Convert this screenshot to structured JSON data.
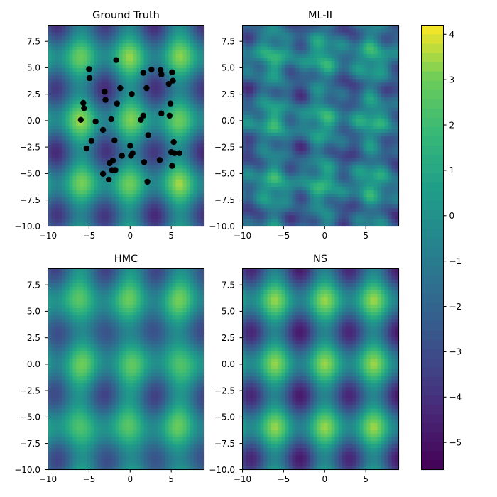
{
  "chart_data": [
    {
      "type": "heatmap",
      "title": "Ground Truth",
      "xlim": [
        -10,
        9
      ],
      "ylim": [
        -10,
        9
      ],
      "xticks": [
        "−10",
        "−5",
        "0",
        "5"
      ],
      "yticks": [
        "7.5",
        "5.0",
        "2.5",
        "0.0",
        "−2.5",
        "−5.0",
        "−7.5",
        "−10.0"
      ],
      "field": "ground_truth",
      "scatter": {
        "color": "#000000",
        "points": [
          [
            -5.0,
            4.85
          ],
          [
            -4.95,
            4.0
          ],
          [
            -1.7,
            5.7
          ],
          [
            2.6,
            4.8
          ],
          [
            3.7,
            4.75
          ],
          [
            5.1,
            4.55
          ],
          [
            1.6,
            4.5
          ],
          [
            3.8,
            4.35
          ],
          [
            5.2,
            3.75
          ],
          [
            4.7,
            3.45
          ],
          [
            -1.2,
            3.05
          ],
          [
            2.0,
            3.05
          ],
          [
            -3.1,
            2.7
          ],
          [
            0.2,
            2.5
          ],
          [
            -3.0,
            1.95
          ],
          [
            -1.6,
            1.6
          ],
          [
            -5.7,
            1.65
          ],
          [
            4.9,
            1.6
          ],
          [
            -5.6,
            1.15
          ],
          [
            3.8,
            0.65
          ],
          [
            4.8,
            0.45
          ],
          [
            1.6,
            0.45
          ],
          [
            -2.3,
            0.1
          ],
          [
            1.3,
            0.05
          ],
          [
            -6.0,
            0.05
          ],
          [
            -4.2,
            -0.1
          ],
          [
            -3.3,
            -0.9
          ],
          [
            2.2,
            -1.4
          ],
          [
            -1.9,
            -1.9
          ],
          [
            -4.7,
            -1.95
          ],
          [
            5.3,
            -2.05
          ],
          [
            0.0,
            -2.4
          ],
          [
            -5.3,
            -2.65
          ],
          [
            5.0,
            -3.0
          ],
          [
            5.4,
            -3.1
          ],
          [
            6.0,
            -3.1
          ],
          [
            0.3,
            -3.1
          ],
          [
            0.1,
            -3.35
          ],
          [
            -1.0,
            -3.35
          ],
          [
            3.6,
            -3.75
          ],
          [
            -2.1,
            -3.8
          ],
          [
            -2.5,
            -4.05
          ],
          [
            1.7,
            -3.95
          ],
          [
            5.1,
            -4.3
          ],
          [
            -2.2,
            -4.7
          ],
          [
            -1.8,
            -4.7
          ],
          [
            -3.3,
            -5.05
          ],
          [
            -2.6,
            -5.6
          ],
          [
            2.1,
            -5.8
          ]
        ]
      }
    },
    {
      "type": "heatmap",
      "title": "ML-II",
      "xlim": [
        -10,
        9
      ],
      "ylim": [
        -10,
        9
      ],
      "xticks": [
        "−10",
        "−5",
        "0",
        "5"
      ],
      "yticks": [
        "7.5",
        "5.0",
        "2.5",
        "0.0",
        "−2.5",
        "−5.0",
        "−7.5",
        "−10.0"
      ],
      "field": "ml2"
    },
    {
      "type": "heatmap",
      "title": "HMC",
      "xlim": [
        -10,
        9
      ],
      "ylim": [
        -10,
        9
      ],
      "xticks": [
        "−10",
        "−5",
        "0",
        "5"
      ],
      "yticks": [
        "7.5",
        "5.0",
        "2.5",
        "0.0",
        "−2.5",
        "−5.0",
        "−7.5",
        "−10.0"
      ],
      "field": "hmc"
    },
    {
      "type": "heatmap",
      "title": "NS",
      "xlim": [
        -10,
        9
      ],
      "ylim": [
        -10,
        9
      ],
      "xticks": [
        "−10",
        "−5",
        "0",
        "5"
      ],
      "yticks": [
        "7.5",
        "5.0",
        "2.5",
        "0.0",
        "−2.5",
        "−5.0",
        "−7.5",
        "−10.0"
      ],
      "field": "ns"
    }
  ],
  "colorbar": {
    "colormap": "viridis",
    "vmin": -5.6,
    "vmax": 4.2,
    "ticks": [
      {
        "value": 4,
        "label": "4"
      },
      {
        "value": 3,
        "label": "3"
      },
      {
        "value": 2,
        "label": "2"
      },
      {
        "value": 1,
        "label": "1"
      },
      {
        "value": 0,
        "label": "0"
      },
      {
        "value": -1,
        "label": "−1"
      },
      {
        "value": -2,
        "label": "−2"
      },
      {
        "value": -3,
        "label": "−3"
      },
      {
        "value": -4,
        "label": "−4"
      },
      {
        "value": -5,
        "label": "−5"
      }
    ]
  }
}
